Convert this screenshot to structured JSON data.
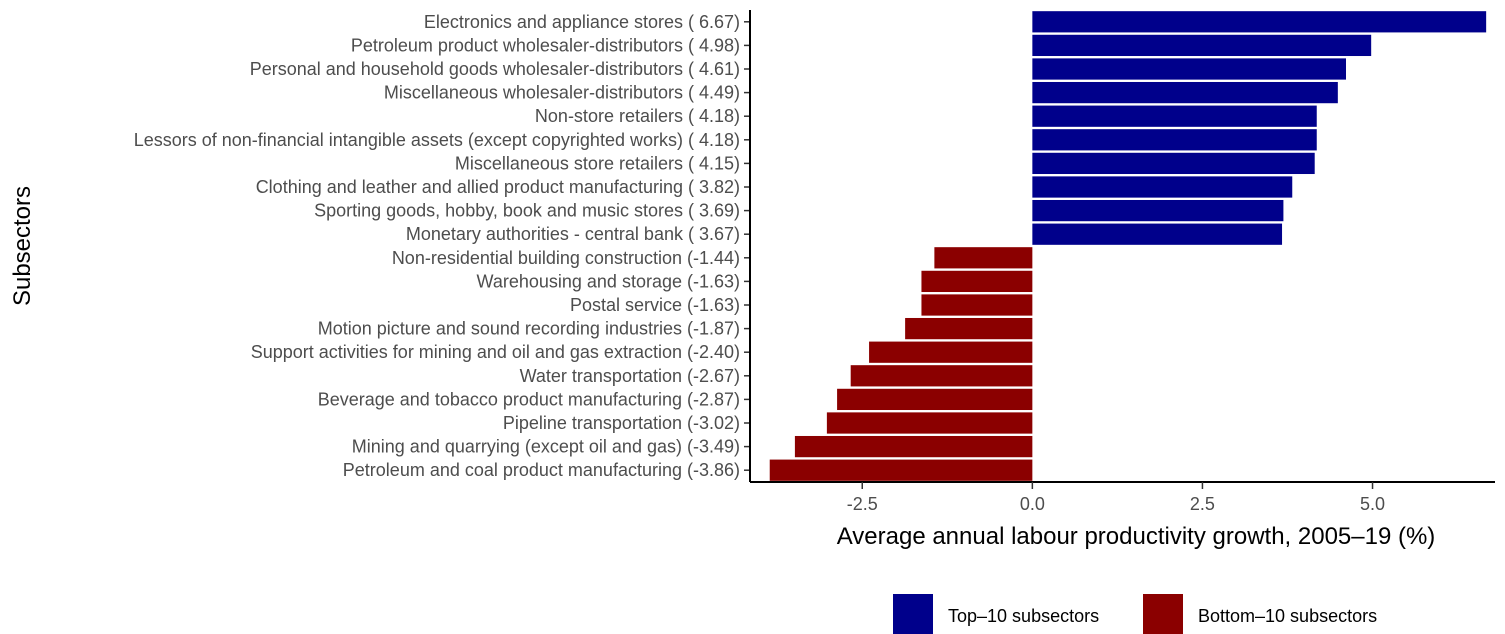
{
  "chart_data": {
    "type": "bar",
    "orientation": "horizontal",
    "xlabel": "Average annual labour productivity growth, 2005–19 (%)",
    "ylabel": "Subsectors",
    "xlim": [
      -4.15,
      6.8
    ],
    "xticks": [
      -2.5,
      0.0,
      2.5,
      5.0
    ],
    "xtick_labels": [
      "-2.5",
      "0.0",
      "2.5",
      "5.0"
    ],
    "grid": false,
    "legend_position": "bottom",
    "categories": [
      "Electronics and appliance stores ( 6.67)",
      "Petroleum product wholesaler-distributors ( 4.98)",
      "Personal and household goods wholesaler-distributors ( 4.61)",
      "Miscellaneous wholesaler-distributors ( 4.49)",
      "Non-store retailers ( 4.18)",
      "Lessors of non-financial intangible assets (except copyrighted works) ( 4.18)",
      "Miscellaneous store retailers ( 4.15)",
      "Clothing and leather and allied product manufacturing ( 3.82)",
      "Sporting goods, hobby, book and music stores ( 3.69)",
      "Monetary authorities - central bank ( 3.67)",
      "Non-residential building construction (-1.44)",
      "Warehousing and storage (-1.63)",
      "Postal service (-1.63)",
      "Motion picture and sound recording industries (-1.87)",
      "Support activities for mining and oil and gas extraction (-2.40)",
      "Water transportation (-2.67)",
      "Beverage and tobacco product manufacturing (-2.87)",
      "Pipeline transportation (-3.02)",
      "Mining and quarrying (except oil and gas) (-3.49)",
      "Petroleum and coal product manufacturing (-3.86)"
    ],
    "values": [
      6.67,
      4.98,
      4.61,
      4.49,
      4.18,
      4.18,
      4.15,
      3.82,
      3.69,
      3.67,
      -1.44,
      -1.63,
      -1.63,
      -1.87,
      -2.4,
      -2.67,
      -2.87,
      -3.02,
      -3.49,
      -3.86
    ],
    "groups": [
      "top",
      "top",
      "top",
      "top",
      "top",
      "top",
      "top",
      "top",
      "top",
      "top",
      "bottom",
      "bottom",
      "bottom",
      "bottom",
      "bottom",
      "bottom",
      "bottom",
      "bottom",
      "bottom",
      "bottom"
    ],
    "legend": [
      {
        "key": "top",
        "label": "Top–10 subsectors",
        "color": "#00008b"
      },
      {
        "key": "bottom",
        "label": "Bottom–10 subsectors",
        "color": "#8b0000"
      }
    ]
  }
}
